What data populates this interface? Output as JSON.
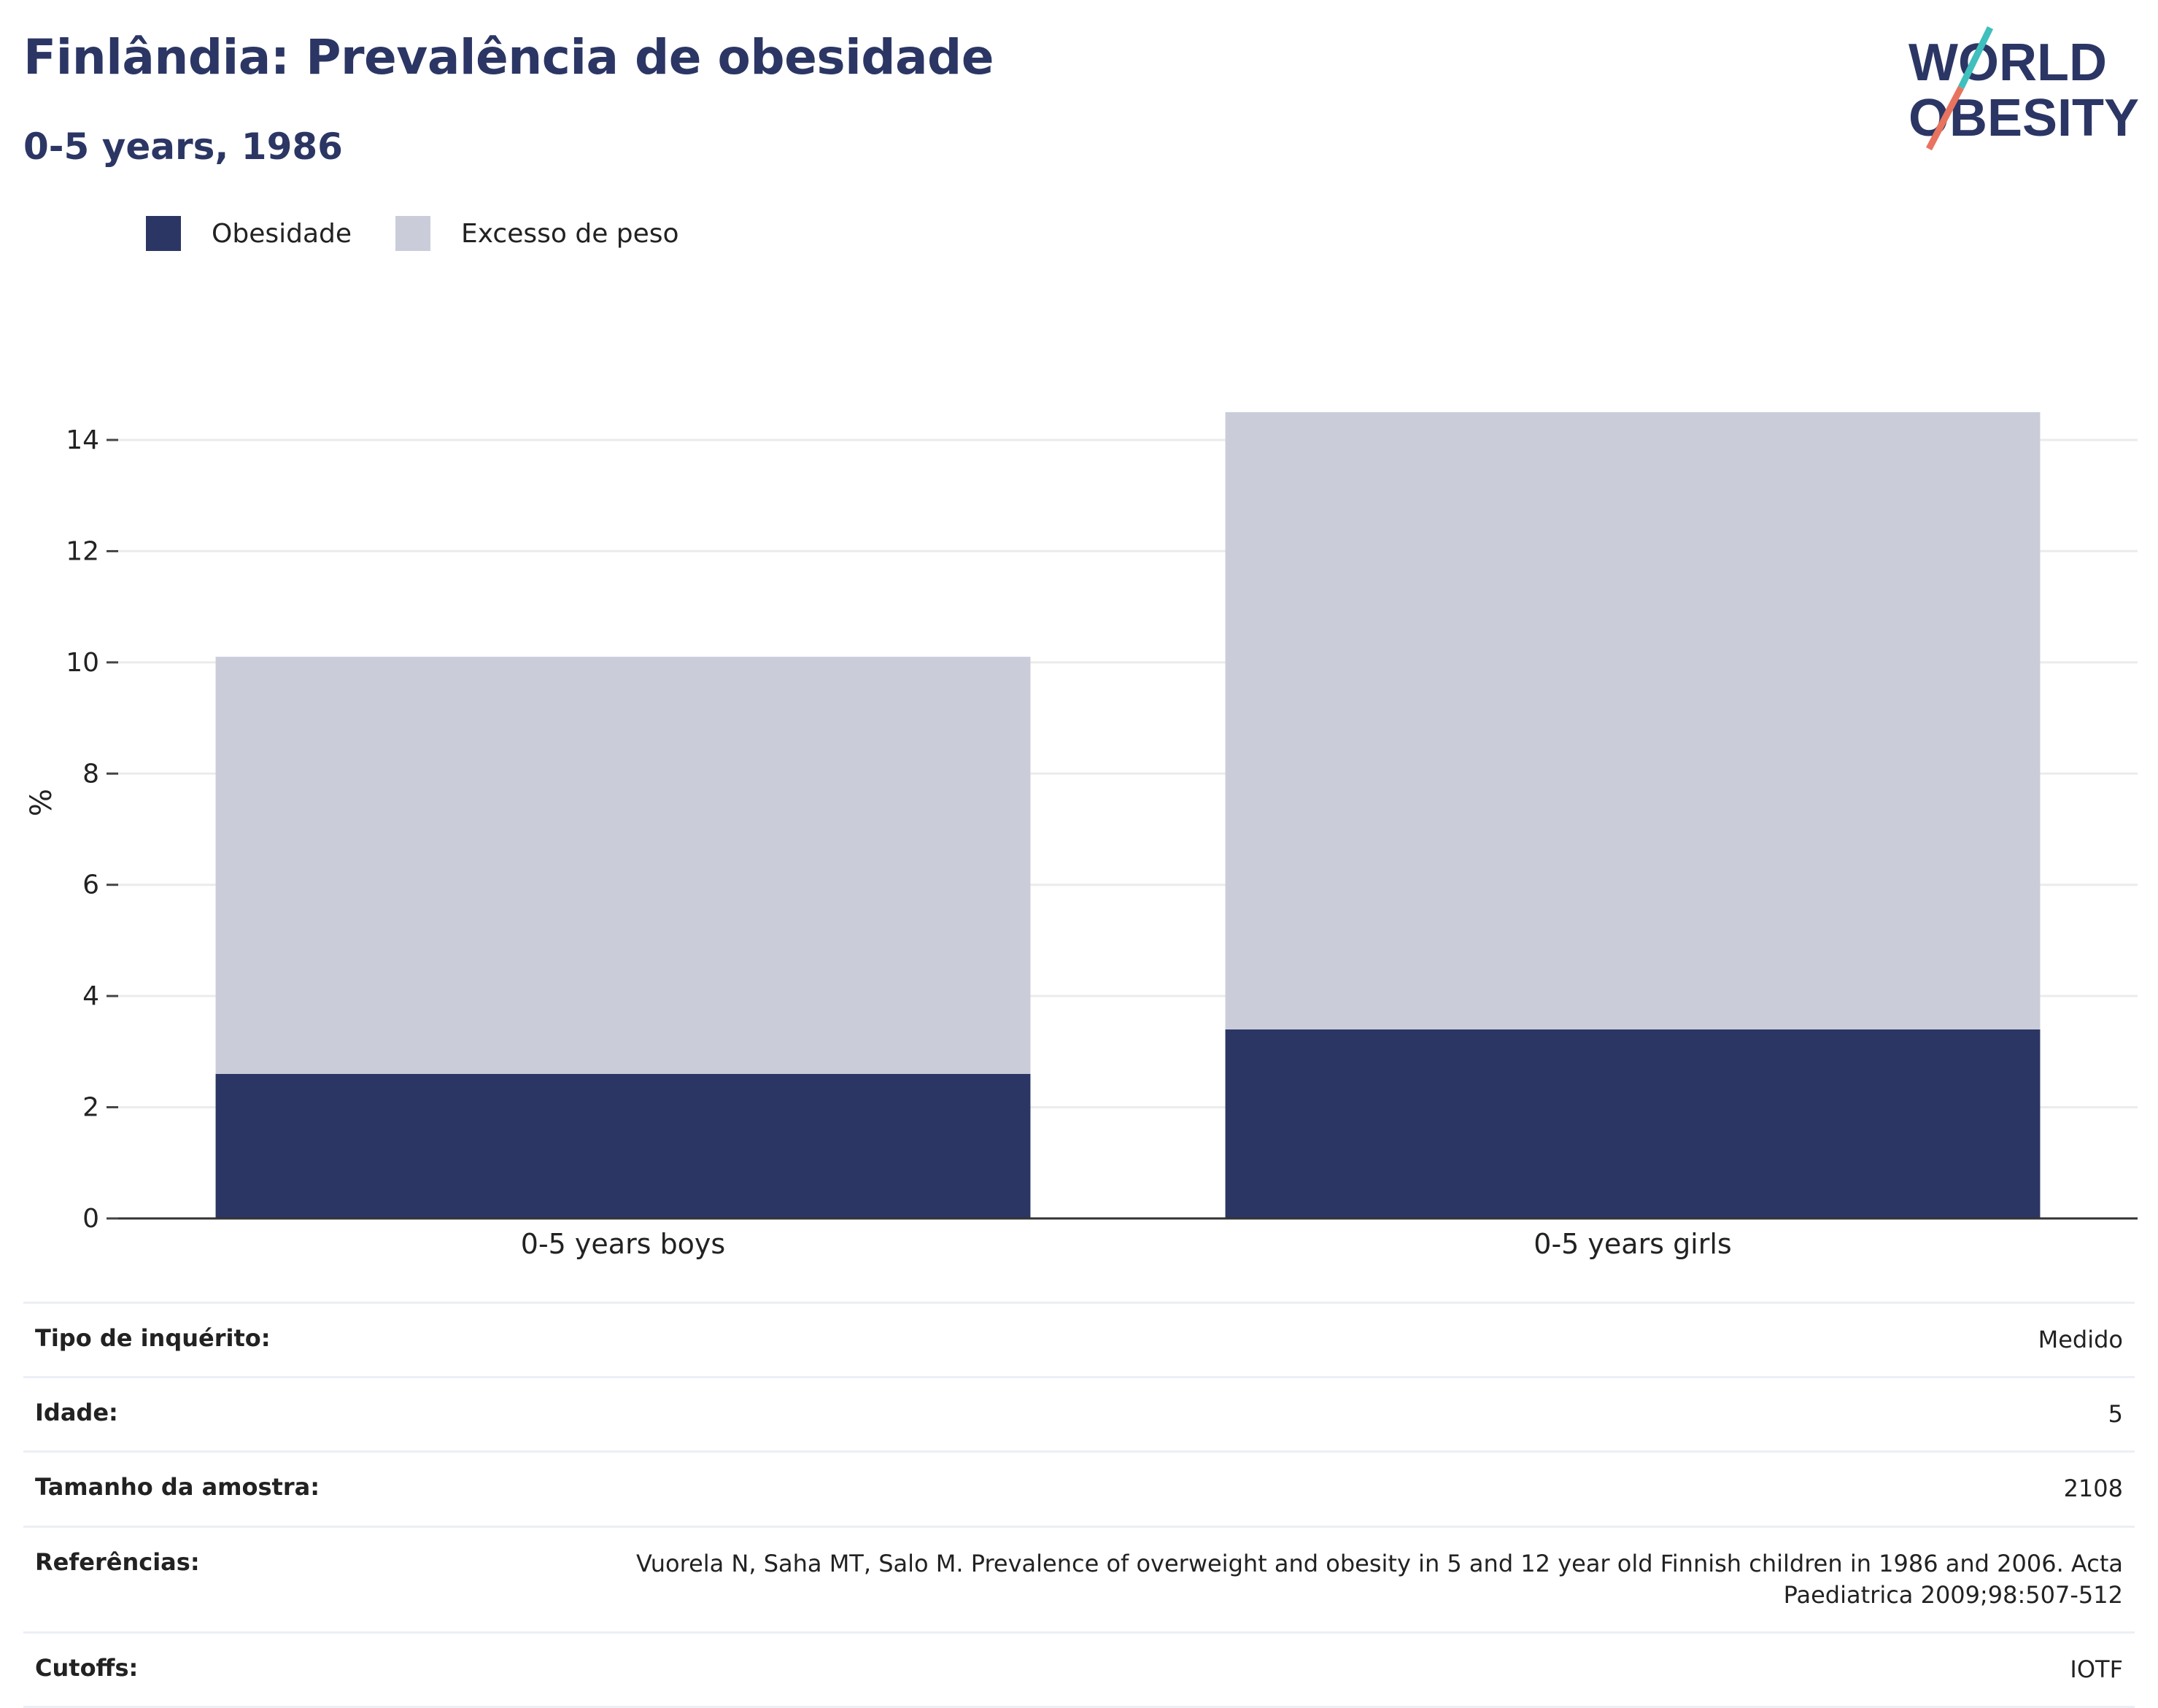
{
  "header": {
    "title": "Finlândia: Prevalência de obesidade",
    "subtitle": "0-5 years, 1986"
  },
  "logo": {
    "line1": "WORLD",
    "line2": "OBESITY"
  },
  "colors": {
    "obesity": "#2b3664",
    "overweight": "#cacdd9",
    "title": "#2b3664",
    "accent_teal": "#3fbfbd",
    "accent_coral": "#e8735f"
  },
  "chart_data": {
    "type": "bar",
    "stacked": true,
    "categories": [
      "0-5 years boys",
      "0-5 years girls"
    ],
    "series": [
      {
        "name": "Obesidade",
        "values": [
          2.6,
          3.4
        ]
      },
      {
        "name": "Excesso de peso",
        "values": [
          7.5,
          11.1
        ]
      }
    ],
    "ylabel": "%",
    "ylim": [
      0,
      15
    ],
    "yticks": [
      0,
      2,
      4,
      6,
      8,
      10,
      12,
      14
    ],
    "grid": true,
    "legend": "top-left"
  },
  "info": [
    {
      "key": "Tipo de inquérito:",
      "value": "Medido"
    },
    {
      "key": "Idade:",
      "value": "5"
    },
    {
      "key": "Tamanho da amostra:",
      "value": "2108"
    },
    {
      "key": "Referências:",
      "value": "Vuorela N, Saha MT, Salo M. Prevalence of overweight and obesity in 5 and 12 year old Finnish children in 1986 and 2006. Acta Paediatrica 2009;98:507-512"
    },
    {
      "key": "Cutoffs:",
      "value": "IOTF"
    }
  ]
}
